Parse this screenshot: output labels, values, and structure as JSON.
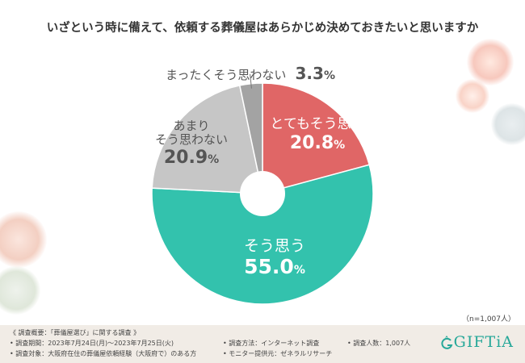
{
  "title": "いざという時に備えて、依頼する葬儀屋はあらかじめ決めておきたいと思いますか",
  "chart_data": {
    "type": "pie",
    "title": "いざという時に備えて、依頼する葬儀屋はあらかじめ決めておきたいと思いますか",
    "slices": [
      {
        "label": "とてもそう思う",
        "value": 20.8,
        "color": "#e06666"
      },
      {
        "label": "そう思う",
        "value": 55.0,
        "color": "#33c2ad"
      },
      {
        "label": "あまりそう思わない",
        "value": 20.9,
        "color": "#c6c6c6"
      },
      {
        "label": "まったくそう思わない",
        "value": 3.3,
        "color": "#a3a3a3"
      }
    ],
    "donut_hole": true
  },
  "labels": {
    "strongly_agree": {
      "name": "とてもそう思う",
      "pct": "20.8",
      "unit": "%"
    },
    "agree": {
      "name": "そう思う",
      "pct": "55.0",
      "unit": "%"
    },
    "not_really": {
      "name1": "あまり",
      "name2": "そう思わない",
      "pct": "20.9",
      "unit": "%"
    },
    "not_at_all": {
      "name": "まったくそう思わない",
      "pct": "3.3",
      "unit": "%"
    }
  },
  "sample_note": "（n=1,007人）",
  "footer": {
    "heading": "《 調査概要：「葬儀屋選び」に関する調査 》",
    "period": "• 調査期間：2023年7月24日(月)～2023年7月25日(火)",
    "subject": "• 調査対象：大阪府在住の葬儀屋依頼経験（大阪府で）のある方",
    "method": "• 調査方法：インターネット調査",
    "provider": "• モニター提供元：ゼネラルリサーチ",
    "count": "• 調査人数：1,007人"
  },
  "logo": {
    "text": "GIFTiA",
    "color": "#27a899"
  }
}
